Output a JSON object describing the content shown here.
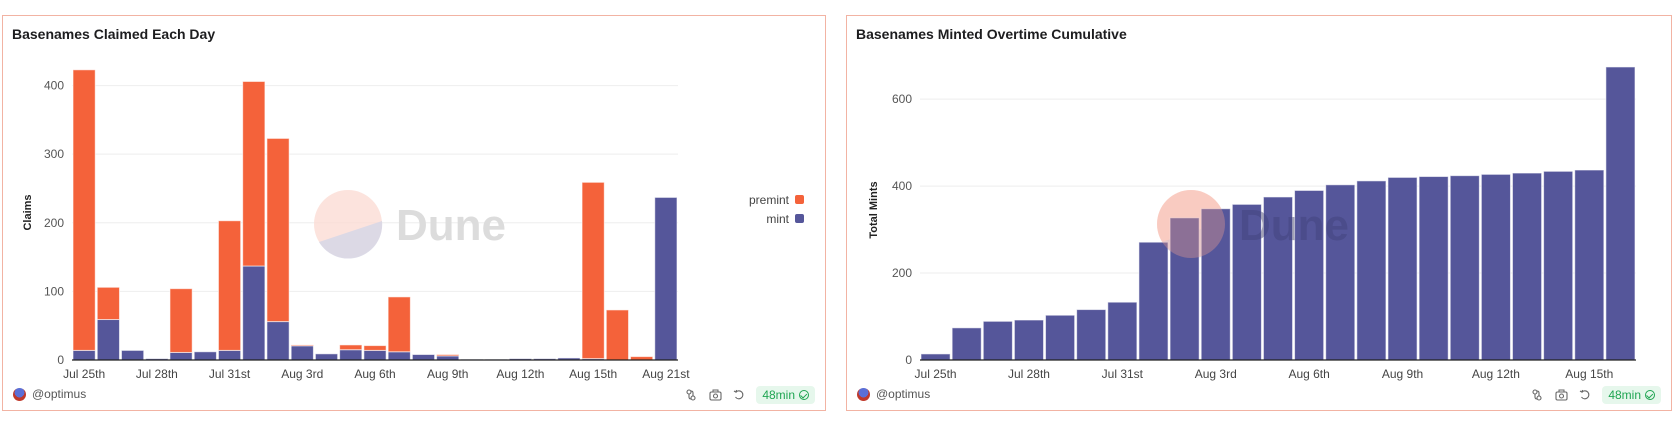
{
  "colors": {
    "premint": "#f4623a",
    "mint": "#55569a",
    "grid": "#eeeeee",
    "border": "#f2b3a3"
  },
  "panels": [
    {
      "title": "Basenames Claimed Each Day",
      "author": "@optimus",
      "freshness": "48min",
      "watermark": "Dune"
    },
    {
      "title": "Basenames Minted Overtime Cumulative",
      "author": "@optimus",
      "freshness": "48min",
      "watermark": "Dune"
    }
  ],
  "chart_data": [
    {
      "type": "bar",
      "stacked": true,
      "title": "Basenames Claimed Each Day",
      "xlabel": "",
      "ylabel": "Claims",
      "ylim": [
        0,
        430
      ],
      "yticks": [
        0,
        100,
        200,
        300,
        400
      ],
      "grid": true,
      "legend": "right",
      "x_tick_labels": [
        {
          "index": 0,
          "label": "Jul 25th"
        },
        {
          "index": 3,
          "label": "Jul 28th"
        },
        {
          "index": 6,
          "label": "Jul 31st"
        },
        {
          "index": 9,
          "label": "Aug 3rd"
        },
        {
          "index": 12,
          "label": "Aug 6th"
        },
        {
          "index": 15,
          "label": "Aug 9th"
        },
        {
          "index": 18,
          "label": "Aug 12th"
        },
        {
          "index": 21,
          "label": "Aug 15th"
        },
        {
          "index": 24,
          "label": "Aug 21st"
        }
      ],
      "series": [
        {
          "name": "mint",
          "values": [
            14,
            59,
            14,
            2,
            11,
            12,
            14,
            137,
            56,
            21,
            9,
            15,
            14,
            12,
            8,
            6,
            1,
            1,
            2,
            2,
            3,
            2,
            0,
            0,
            237
          ]
        },
        {
          "name": "premint",
          "values": [
            409,
            47,
            0,
            0,
            93,
            0,
            189,
            269,
            267,
            1,
            0,
            7,
            7,
            80,
            0,
            2,
            0,
            0,
            0,
            0,
            0,
            257,
            73,
            5,
            0
          ]
        }
      ],
      "legend_entries": [
        "premint",
        "mint"
      ]
    },
    {
      "type": "bar",
      "title": "Basenames Minted Overtime Cumulative",
      "xlabel": "",
      "ylabel": "Total Mints",
      "ylim": [
        0,
        690
      ],
      "yticks": [
        0,
        200,
        400,
        600
      ],
      "grid": true,
      "x_tick_labels": [
        {
          "index": 0,
          "label": "Jul 25th"
        },
        {
          "index": 3,
          "label": "Jul 28th"
        },
        {
          "index": 6,
          "label": "Jul 31st"
        },
        {
          "index": 9,
          "label": "Aug 3rd"
        },
        {
          "index": 12,
          "label": "Aug 6th"
        },
        {
          "index": 15,
          "label": "Aug 9th"
        },
        {
          "index": 18,
          "label": "Aug 12th"
        },
        {
          "index": 21,
          "label": "Aug 15th"
        }
      ],
      "series": [
        {
          "name": "Total Mints",
          "values": [
            14,
            74,
            89,
            92,
            103,
            116,
            133,
            271,
            327,
            348,
            358,
            375,
            390,
            403,
            412,
            420,
            422,
            424,
            427,
            430,
            434,
            437,
            674
          ]
        }
      ]
    }
  ]
}
